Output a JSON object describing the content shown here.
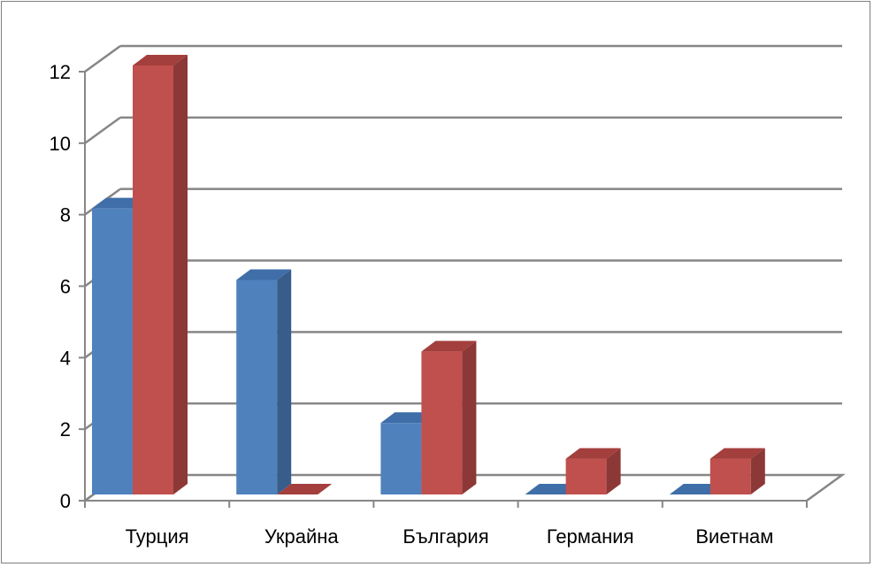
{
  "chart_data": {
    "type": "bar",
    "title": "",
    "categories": [
      "Турция",
      "Украйна",
      "България",
      "Германия",
      "Виетнам"
    ],
    "series": [
      {
        "values": [
          8,
          6,
          2,
          0,
          0
        ]
      },
      {
        "values": [
          12,
          0,
          4,
          1,
          1
        ]
      }
    ],
    "yticks": [
      "0",
      "2",
      "4",
      "6",
      "8",
      "10",
      "12"
    ],
    "ylim": [
      0,
      12
    ],
    "grid": true,
    "three_d": true,
    "colors": {
      "series1_front": "#4F81BD",
      "series1_side": "#385D8A",
      "series1_top": "#3F6EA8",
      "series2_front": "#C0504D",
      "series2_side": "#8C3836",
      "series2_top": "#A33F3C",
      "grid": "#868686",
      "axis": "#868686"
    }
  }
}
